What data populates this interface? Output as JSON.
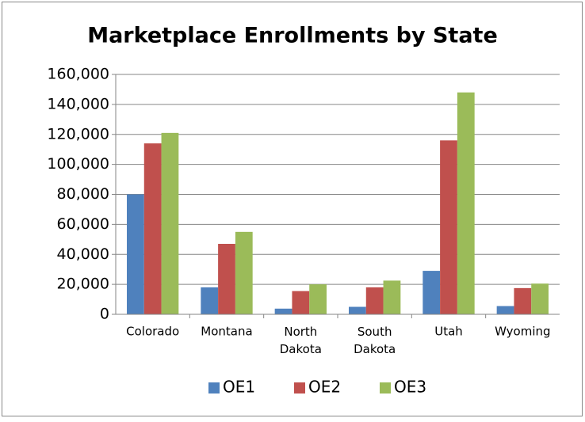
{
  "chart_data": {
    "type": "bar",
    "title": "Marketplace Enrollments by State",
    "categories": [
      "Colorado",
      "Montana",
      "North Dakota",
      "South Dakota",
      "Utah",
      "Wyoming"
    ],
    "series": [
      {
        "name": "OE1",
        "color": "#4f81bd",
        "values": [
          80000,
          18000,
          3800,
          5000,
          29000,
          5500
        ]
      },
      {
        "name": "OE2",
        "color": "#c0504d",
        "values": [
          114000,
          47000,
          15500,
          18000,
          116000,
          17500
        ]
      },
      {
        "name": "OE3",
        "color": "#9bbb59",
        "values": [
          121000,
          55000,
          20000,
          22500,
          148000,
          20500
        ]
      }
    ],
    "ylim": [
      0,
      160000
    ],
    "yticks": [
      0,
      {
        "value": 20000,
        "label": "20,000"
      },
      {
        "value": 40000,
        "label": "40,000"
      },
      {
        "value": 60000,
        "label": "60,000"
      },
      {
        "value": 80000,
        "label": "80,000"
      },
      {
        "value": 100000,
        "label": "100,000"
      },
      {
        "value": 120000,
        "label": "120,000"
      },
      {
        "value": 140000,
        "label": "140,000"
      },
      {
        "value": 160000,
        "label": "160,000"
      }
    ],
    "grid": true,
    "legend": "bottom"
  }
}
